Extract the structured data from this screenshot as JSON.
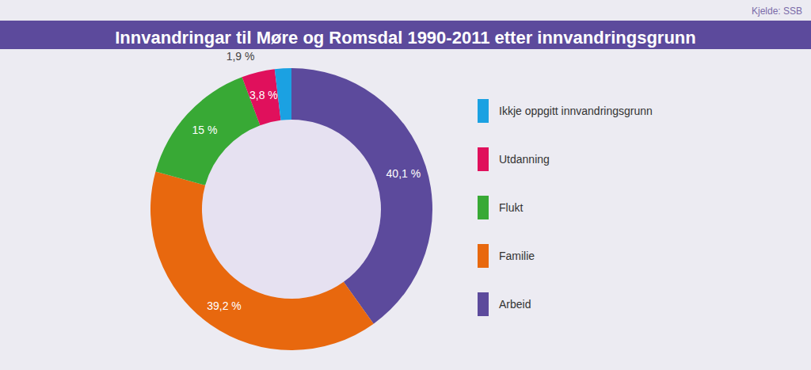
{
  "chart_data": {
    "type": "donut",
    "title": "Innvandringar til Møre og Romsdal 1990-2011 etter innvandringsgrunn",
    "source": "Kjelde: SSB",
    "categories": [
      "Arbeid",
      "Familie",
      "Flukt",
      "Utdanning",
      "Ikkje oppgitt innvandringsgrunn"
    ],
    "values": [
      40.1,
      39.2,
      15,
      3.8,
      1.9
    ],
    "value_labels": [
      "40,1 %",
      "39,2 %",
      "15 %",
      "3,8 %",
      "1,9 %"
    ],
    "colors": [
      "#5c4a9c",
      "#e8680e",
      "#38a935",
      "#e0105c",
      "#1ba1e2"
    ],
    "data_labels": true,
    "legend": "right"
  }
}
